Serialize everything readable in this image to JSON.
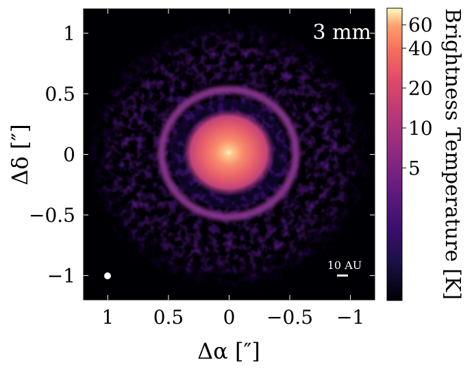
{
  "image_panel": {
    "band_label": "3 mm",
    "scalebar_label": "10 AU",
    "beam": "white filled ellipse (synthesized beam)"
  },
  "axes": {
    "xlabel": "Δα [″]",
    "ylabel": "Δδ [″]",
    "xlim": [
      1.2,
      -1.2
    ],
    "ylim": [
      -1.2,
      1.2
    ],
    "xticks": [
      {
        "value": 1,
        "label": "1"
      },
      {
        "value": 0.5,
        "label": "0.5"
      },
      {
        "value": 0,
        "label": "0"
      },
      {
        "value": -0.5,
        "label": "−0.5"
      },
      {
        "value": -1,
        "label": "−1"
      }
    ],
    "yticks": [
      {
        "value": 1,
        "label": "1"
      },
      {
        "value": 0.5,
        "label": "0.5"
      },
      {
        "value": 0,
        "label": "0"
      },
      {
        "value": -0.5,
        "label": "−0.5"
      },
      {
        "value": -1,
        "label": "−1"
      }
    ]
  },
  "colorbar": {
    "label": "Brightness Temperature [K]",
    "colormap": "magma",
    "scale": "log",
    "range": [
      0.5,
      80
    ],
    "ticks": [
      {
        "value": 5,
        "label": "5"
      },
      {
        "value": 10,
        "label": "10"
      },
      {
        "value": 20,
        "label": "20"
      },
      {
        "value": 40,
        "label": "40"
      },
      {
        "value": 60,
        "label": "60"
      }
    ]
  },
  "colors": {
    "background": "#000004",
    "ring": "#7b2f8a",
    "core": "#f1705a",
    "peak": "#fde3b0",
    "annotation": "#ffffff"
  }
}
